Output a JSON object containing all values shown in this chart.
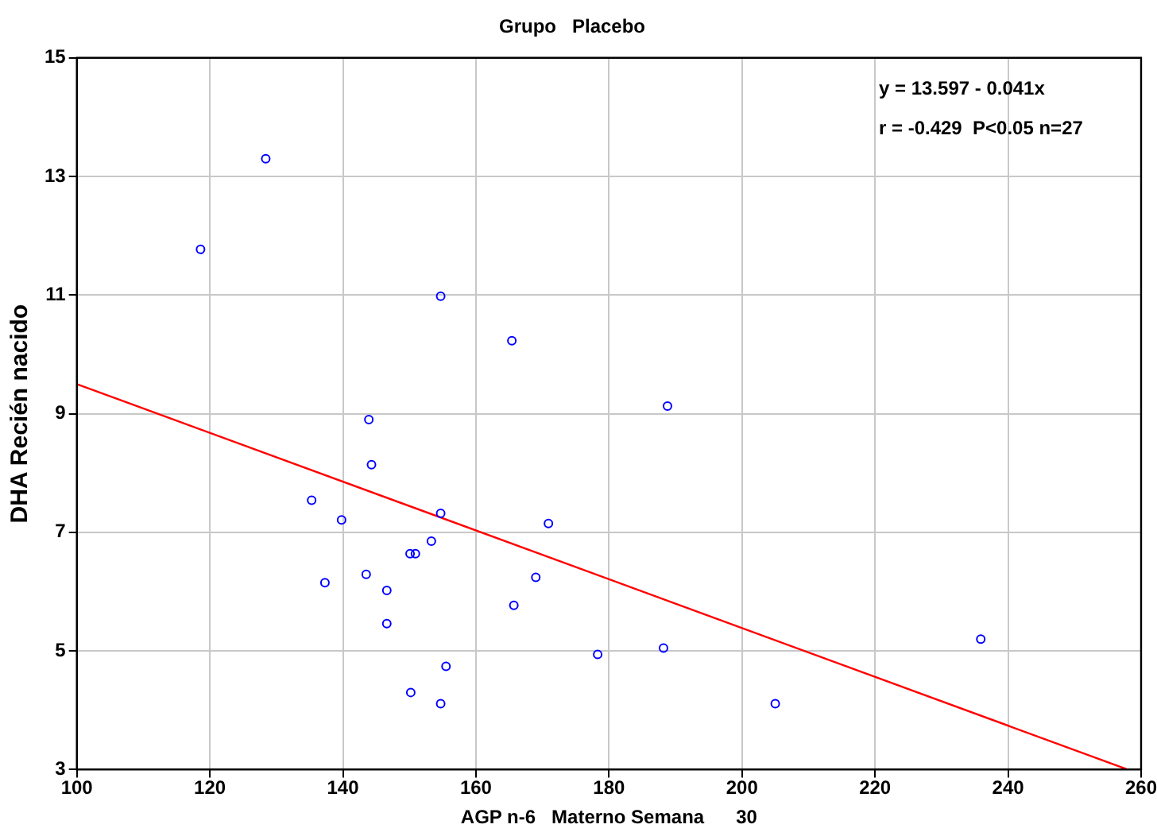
{
  "chart_data": {
    "type": "scatter",
    "title": "Grupo   Placebo",
    "xlabel": "AGP n-6   Materno Semana      30",
    "ylabel": "DHA Recién nacido",
    "annotations": [
      "y = 13.597 - 0.041x",
      "r = -0.429  P<0.05 n=27"
    ],
    "series": [
      {
        "color": "#0000ff",
        "marker": "circle",
        "x": [
          128.4,
          118.6,
          154.7,
          165.4,
          143.9,
          144.3,
          135.3,
          139.8,
          154.7,
          170.9,
          153.3,
          150.1,
          150.9,
          137.3,
          143.5,
          146.6,
          169.0,
          165.7,
          146.6,
          178.3,
          155.5,
          150.2,
          154.7,
          188.8,
          188.2,
          205.0,
          235.9
        ],
        "values": [
          13.3,
          11.77,
          10.98,
          10.23,
          8.9,
          8.14,
          7.54,
          7.21,
          7.32,
          7.15,
          6.85,
          6.64,
          6.64,
          6.15,
          6.29,
          6.02,
          6.24,
          5.77,
          5.46,
          4.94,
          4.74,
          4.3,
          4.11,
          9.13,
          5.05,
          4.11,
          5.2
        ]
      },
      {
        "type": "line",
        "color": "#ff0000",
        "marker": "none",
        "x": [
          100,
          258
        ],
        "values": [
          9.5,
          3.0
        ]
      }
    ],
    "xlim": [
      100,
      260
    ],
    "xticks": [
      100,
      120,
      140,
      160,
      180,
      200,
      220,
      240,
      260
    ],
    "ylim": [
      3,
      15
    ],
    "yticks": [
      3,
      5,
      7,
      9,
      11,
      13,
      15
    ],
    "grid": true,
    "legend": false
  }
}
